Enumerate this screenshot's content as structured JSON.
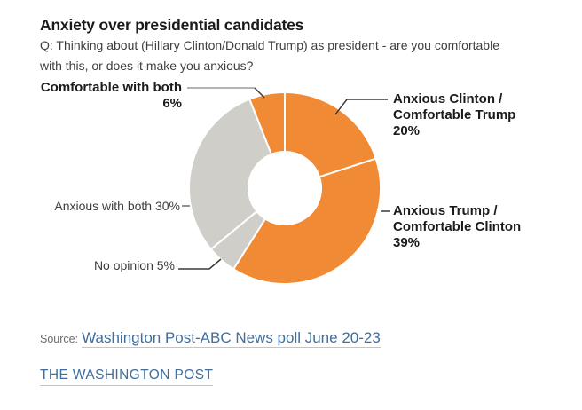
{
  "header": {
    "title": "Anxiety over presidential candidates",
    "question": "Q: Thinking about (Hillary Clinton/Donald Trump) as president - are you comfortable with this, or does it make you anxious?"
  },
  "labels": {
    "comfortable_both": {
      "line1": "Comfortable with both",
      "line2": "6%"
    },
    "anxious_clinton": {
      "line1": "Anxious Clinton /",
      "line2": "Comfortable Trump",
      "line3": "20%"
    },
    "anxious_trump": {
      "line1": "Anxious Trump /",
      "line2": "Comfortable Clinton",
      "line3": "39%"
    },
    "anxious_both": "Anxious with both 30%",
    "no_opinion": "No opinion 5%"
  },
  "footer": {
    "source_prefix": "Source:",
    "source_link_text": "Washington Post-ABC News poll June 20-23",
    "publisher_link_text": "THE WASHINGTON POST"
  },
  "colors": {
    "orange": "#F18A34",
    "gray": "#CFCEC9",
    "link_blue": "#3E6E9E",
    "leader_dark": "#3a3a3a",
    "leader_gray": "#9b9b9b"
  },
  "chart_data": {
    "type": "pie",
    "donut": true,
    "title": "Anxiety over presidential candidates",
    "subtitle": "Q: Thinking about (Hillary Clinton/Donald Trump) as president - are you comfortable with this, or does it make you anxious?",
    "unit": "%",
    "start_angle_deg": 0,
    "direction": "clockwise",
    "slices": [
      {
        "id": "anxious-clinton-comfortable-trump",
        "label": "Anxious Clinton / Comfortable Trump",
        "value": 20,
        "color": "#F18A34"
      },
      {
        "id": "anxious-trump-comfortable-clinton",
        "label": "Anxious Trump / Comfortable Clinton",
        "value": 39,
        "color": "#F18A34"
      },
      {
        "id": "no-opinion",
        "label": "No opinion",
        "value": 5,
        "color": "#CFCEC9"
      },
      {
        "id": "anxious-with-both",
        "label": "Anxious with both",
        "value": 30,
        "color": "#CFCEC9"
      },
      {
        "id": "comfortable-with-both",
        "label": "Comfortable with both",
        "value": 6,
        "color": "#F18A34"
      }
    ],
    "source": "Washington Post-ABC News poll June 20-23"
  }
}
